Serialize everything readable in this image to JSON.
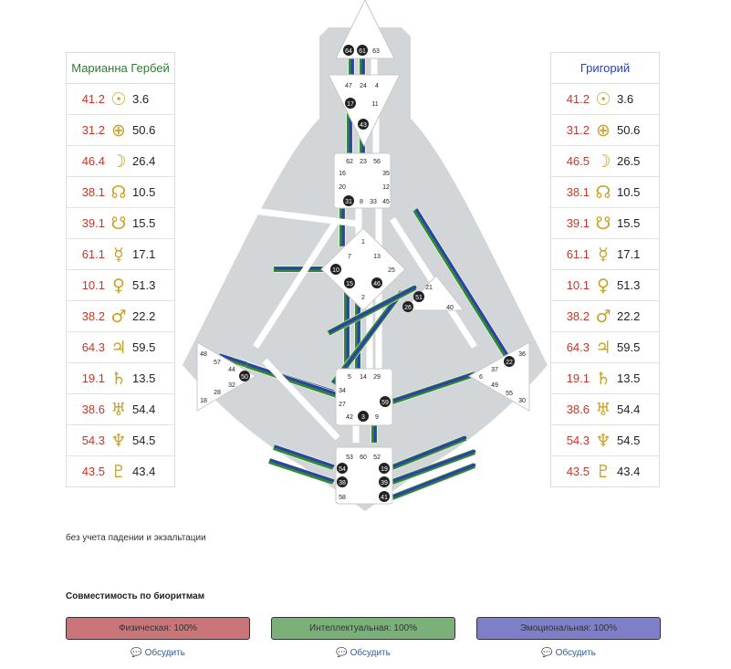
{
  "left_panel": {
    "name": "Марианна Гербей",
    "name_color": "#2e7d32",
    "rows": [
      {
        "gate": "41.2",
        "symbol": "☉",
        "icon": "sun-icon",
        "value": "3.6"
      },
      {
        "gate": "31.2",
        "symbol": "⊕",
        "icon": "earth-icon",
        "value": "50.6"
      },
      {
        "gate": "46.4",
        "symbol": "☽",
        "icon": "moon-icon",
        "value": "26.4"
      },
      {
        "gate": "38.1",
        "symbol": "☊",
        "icon": "north-node-icon",
        "value": "10.5"
      },
      {
        "gate": "39.1",
        "symbol": "☋",
        "icon": "south-node-icon",
        "value": "15.5"
      },
      {
        "gate": "61.1",
        "symbol": "☿",
        "icon": "mercury-icon",
        "value": "17.1"
      },
      {
        "gate": "10.1",
        "symbol": "♀",
        "icon": "venus-icon",
        "value": "51.3"
      },
      {
        "gate": "38.2",
        "symbol": "♂",
        "icon": "mars-icon",
        "value": "22.2"
      },
      {
        "gate": "64.3",
        "symbol": "♃",
        "icon": "jupiter-icon",
        "value": "59.5"
      },
      {
        "gate": "19.1",
        "symbol": "♄",
        "icon": "saturn-icon",
        "value": "13.5"
      },
      {
        "gate": "38.6",
        "symbol": "♅",
        "icon": "uranus-icon",
        "value": "54.4"
      },
      {
        "gate": "54.3",
        "symbol": "♆",
        "icon": "neptune-icon",
        "value": "54.5"
      },
      {
        "gate": "43.5",
        "symbol": "♇",
        "icon": "pluto-icon",
        "value": "43.4"
      }
    ]
  },
  "right_panel": {
    "name": "Григорий",
    "name_color": "#2a3fb0",
    "rows": [
      {
        "gate": "41.2",
        "symbol": "☉",
        "icon": "sun-icon",
        "value": "3.6"
      },
      {
        "gate": "31.2",
        "symbol": "⊕",
        "icon": "earth-icon",
        "value": "50.6"
      },
      {
        "gate": "46.5",
        "symbol": "☽",
        "icon": "moon-icon",
        "value": "26.5"
      },
      {
        "gate": "38.1",
        "symbol": "☊",
        "icon": "north-node-icon",
        "value": "10.5"
      },
      {
        "gate": "39.1",
        "symbol": "☋",
        "icon": "south-node-icon",
        "value": "15.5"
      },
      {
        "gate": "61.1",
        "symbol": "☿",
        "icon": "mercury-icon",
        "value": "17.1"
      },
      {
        "gate": "10.1",
        "symbol": "♀",
        "icon": "venus-icon",
        "value": "51.3"
      },
      {
        "gate": "38.2",
        "symbol": "♂",
        "icon": "mars-icon",
        "value": "22.2"
      },
      {
        "gate": "64.3",
        "symbol": "♃",
        "icon": "jupiter-icon",
        "value": "59.5"
      },
      {
        "gate": "19.1",
        "symbol": "♄",
        "icon": "saturn-icon",
        "value": "13.5"
      },
      {
        "gate": "38.6",
        "symbol": "♅",
        "icon": "uranus-icon",
        "value": "54.4"
      },
      {
        "gate": "54.3",
        "symbol": "♆",
        "icon": "neptune-icon",
        "value": "54.5"
      },
      {
        "gate": "43.5",
        "symbol": "♇",
        "icon": "pluto-icon",
        "value": "43.4"
      }
    ]
  },
  "bodygraph": {
    "head_gates": [
      "64",
      "61",
      "63"
    ],
    "ajna_gates": [
      "47",
      "24",
      "4",
      "17",
      "11",
      "43"
    ],
    "throat_gates": [
      "62",
      "23",
      "56",
      "16",
      "35",
      "20",
      "12",
      "31",
      "8",
      "33",
      "45"
    ],
    "g_gates": [
      "1",
      "7",
      "13",
      "10",
      "25",
      "15",
      "46",
      "2"
    ],
    "ego_gates": [
      "21",
      "51",
      "26",
      "40"
    ],
    "spleen_gates": [
      "48",
      "57",
      "44",
      "50",
      "32",
      "28",
      "18"
    ],
    "sacral_gates": [
      "5",
      "14",
      "29",
      "34",
      "27",
      "59",
      "42",
      "3",
      "9"
    ],
    "solar_plexus_gates": [
      "36",
      "22",
      "37",
      "6",
      "49",
      "55",
      "30"
    ],
    "root_gates": [
      "53",
      "60",
      "52",
      "54",
      "19",
      "38",
      "39",
      "58",
      "41"
    ],
    "active_gates": [
      "64",
      "61",
      "17",
      "43",
      "31",
      "10",
      "15",
      "46",
      "51",
      "26",
      "50",
      "59",
      "3",
      "22",
      "54",
      "38",
      "19",
      "39",
      "41"
    ],
    "colors": {
      "definition_blue": "#2f3fae",
      "definition_green": "#2e8b2e",
      "body": "#d3d6d8",
      "channel": "#ffffff",
      "center": "#ffffff"
    }
  },
  "note": "без учета падении и экзальтации",
  "compat": {
    "title": "Совместимость по биоритмам",
    "bars": [
      {
        "label": "Физическая: 100%",
        "color": "#c9757a"
      },
      {
        "label": "Интеллектуальная: 100%",
        "color": "#79b179"
      },
      {
        "label": "Эмоциональная: 100%",
        "color": "#7d7fc8"
      }
    ],
    "discuss_label": "Обсудить"
  }
}
